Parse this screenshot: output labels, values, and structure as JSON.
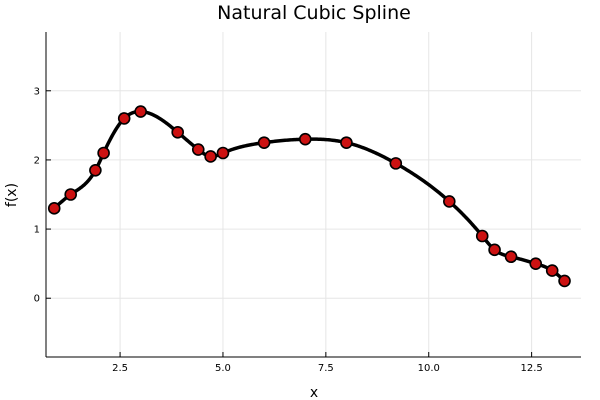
{
  "chart_data": {
    "type": "line",
    "title": "Natural Cubic Spline",
    "xlabel": "x",
    "ylabel": "f(x)",
    "xlim": [
      0.7,
      13.7
    ],
    "ylim": [
      -0.85,
      3.85
    ],
    "xticks": [
      2.5,
      5.0,
      7.5,
      10.0,
      12.5
    ],
    "xtick_labels": [
      "2.5",
      "5.0",
      "7.5",
      "10.0",
      "12.5"
    ],
    "yticks": [
      0,
      1,
      2,
      3
    ],
    "ytick_labels": [
      "0",
      "1",
      "2",
      "3"
    ],
    "grid": true,
    "legend": "none",
    "series": [
      {
        "kind": "spline",
        "color": "#000000",
        "x": [
          0.9,
          1.3,
          1.9,
          2.1,
          2.6,
          3.0,
          3.9,
          4.4,
          4.7,
          5.0,
          6.0,
          7.0,
          8.0,
          9.2,
          10.5,
          11.3,
          11.6,
          12.0,
          12.6,
          13.0,
          13.3
        ],
        "y": [
          1.3,
          1.5,
          1.85,
          2.1,
          2.6,
          2.7,
          2.4,
          2.15,
          2.05,
          2.1,
          2.25,
          2.3,
          2.25,
          1.95,
          1.4,
          0.9,
          0.7,
          0.6,
          0.5,
          0.4,
          0.25
        ]
      },
      {
        "kind": "scatter",
        "color": "#cc1111",
        "x": [
          0.9,
          1.3,
          1.9,
          2.1,
          2.6,
          3.0,
          3.9,
          4.4,
          4.7,
          5.0,
          6.0,
          7.0,
          8.0,
          9.2,
          10.5,
          11.3,
          11.6,
          12.0,
          12.6,
          13.0,
          13.3
        ],
        "y": [
          1.3,
          1.5,
          1.85,
          2.1,
          2.6,
          2.7,
          2.4,
          2.15,
          2.05,
          2.1,
          2.25,
          2.3,
          2.25,
          1.95,
          1.4,
          0.9,
          0.7,
          0.6,
          0.5,
          0.4,
          0.25
        ]
      }
    ]
  }
}
